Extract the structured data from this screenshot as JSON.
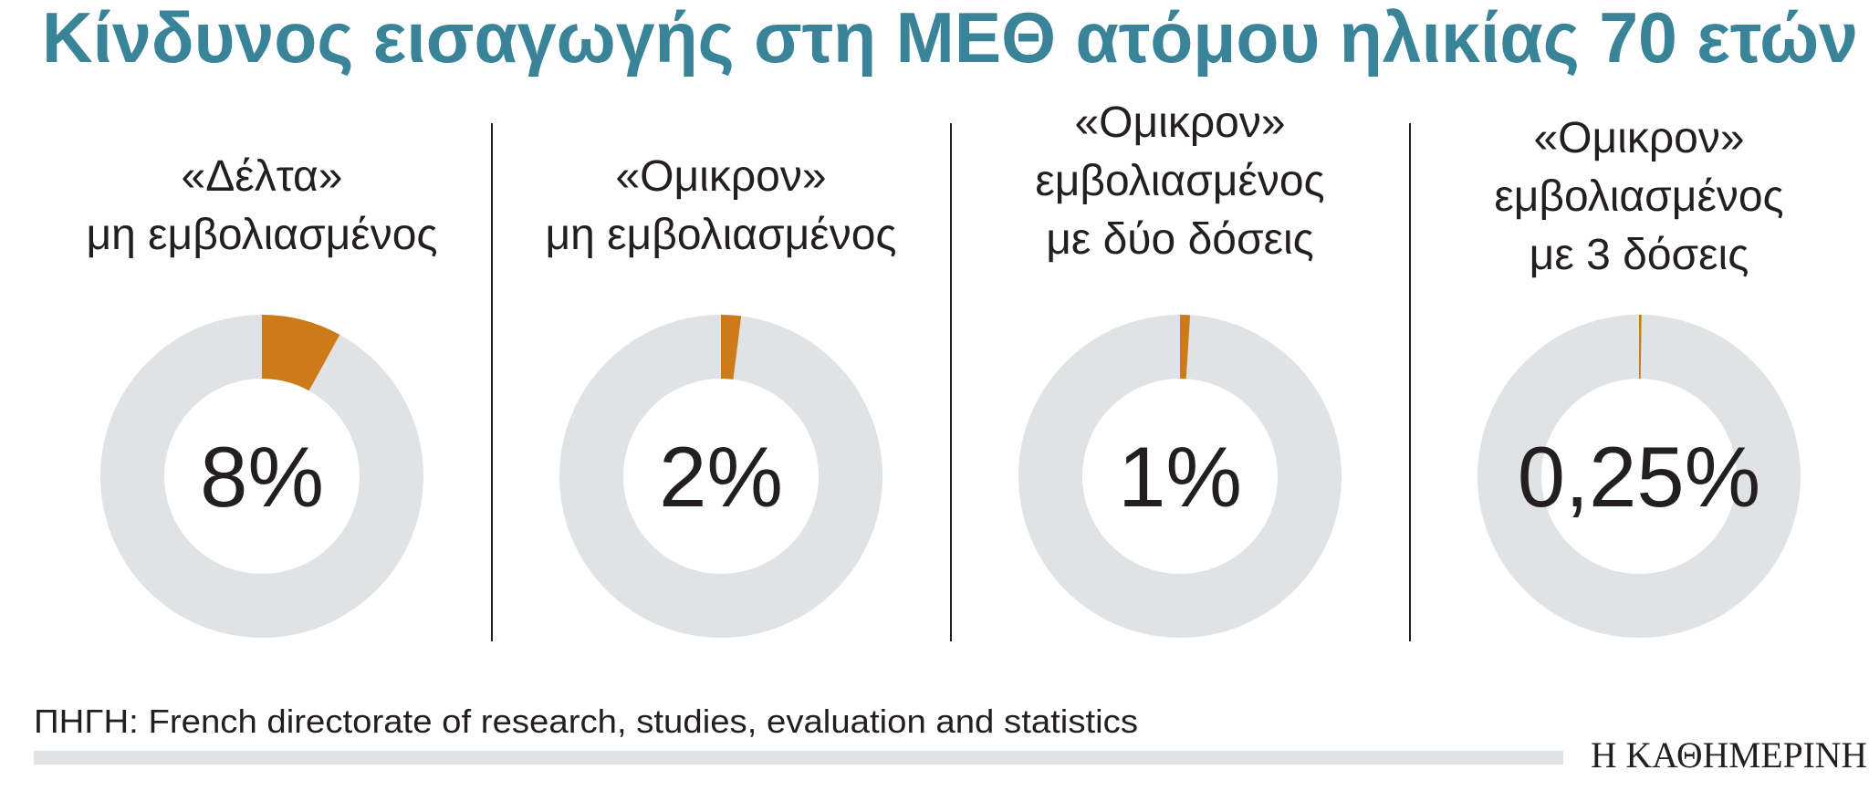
{
  "chart_data": {
    "type": "pie",
    "variant": "donut",
    "title": "Κίνδυνος εισαγωγής στη ΜΕΘ ατόμου ηλικίας 70 ετών",
    "panels": [
      {
        "label_lines": [
          "«Δέλτα»",
          "μη εμβολιασμένος"
        ],
        "value": 8,
        "value_label": "8%"
      },
      {
        "label_lines": [
          "«Ομικρον»",
          "μη εμβολιασμένος"
        ],
        "value": 2,
        "value_label": "2%"
      },
      {
        "label_lines": [
          "«Ομικρον»",
          "εμβολιασμένος",
          "με δύο δόσεις"
        ],
        "value": 1,
        "value_label": "1%"
      },
      {
        "label_lines": [
          "«Ομικρον»",
          "εμβολιασμένος",
          "με 3 δόσεις"
        ],
        "value": 0.25,
        "value_label": "0,25%"
      }
    ],
    "unit": "%",
    "total": 100,
    "colors": {
      "value": "#cc7a1a",
      "remainder": "#e1e2e3",
      "title": "#3a8499"
    }
  },
  "source": "ΠΗΓΗ: French directorate of research, studies, evaluation and statistics",
  "logo": "Η ΚΑΘΗΜΕΡΙΝΗ"
}
